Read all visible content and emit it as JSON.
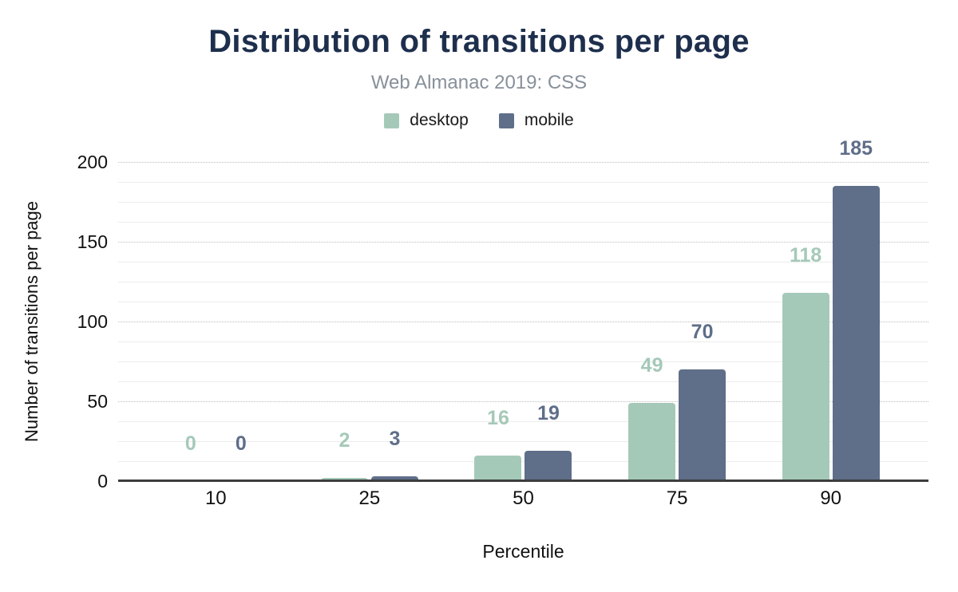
{
  "chart_data": {
    "type": "bar",
    "title": "Distribution of transitions per page",
    "subtitle": "Web Almanac 2019: CSS",
    "xlabel": "Percentile",
    "ylabel": "Number of transitions per page",
    "categories": [
      "10",
      "25",
      "50",
      "75",
      "90"
    ],
    "series": [
      {
        "name": "desktop",
        "color": "#a5c9b8",
        "values": [
          0,
          2,
          16,
          49,
          118
        ]
      },
      {
        "name": "mobile",
        "color": "#5f6e89",
        "values": [
          0,
          3,
          19,
          70,
          185
        ]
      }
    ],
    "ylim": [
      0,
      200
    ],
    "yticks": [
      0,
      50,
      100,
      150,
      200
    ],
    "minor_gridline_step": 12.5,
    "grid": true,
    "legend_position": "top",
    "data_labels": true
  },
  "palette": {
    "title": "#1e2f4d",
    "subtitle": "#87909a",
    "tick_text": "#111111",
    "axis_line": "#3d3d3d",
    "major_grid": "#bdbdbd",
    "minor_grid": "#ececec",
    "background": "#ffffff"
  }
}
